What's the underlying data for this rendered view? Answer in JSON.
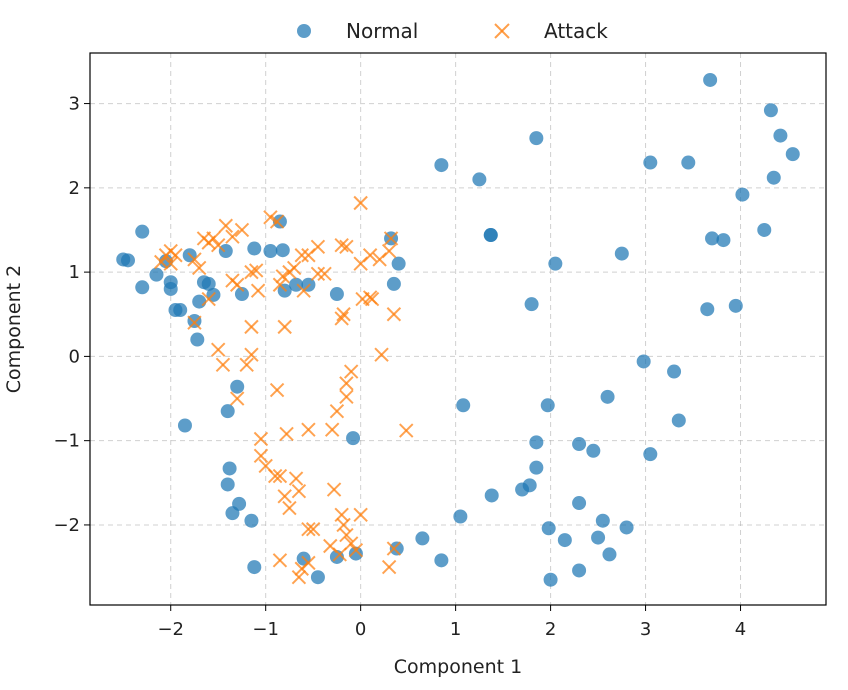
{
  "chart_data": {
    "type": "scatter",
    "title": "",
    "xlabel": "Component 1",
    "ylabel": "Component 2",
    "xlim": [
      -2.85,
      4.9
    ],
    "ylim": [
      -2.95,
      3.6
    ],
    "xticks": [
      -2,
      -1,
      0,
      1,
      2,
      3,
      4
    ],
    "yticks": [
      -2,
      -1,
      0,
      1,
      2,
      3
    ],
    "xtick_labels": [
      "−2",
      "−1",
      "0",
      "1",
      "2",
      "3",
      "4"
    ],
    "ytick_labels": [
      "−2",
      "−1",
      "0",
      "1",
      "2",
      "3"
    ],
    "grid": true,
    "legend_position": "top-center, above plot",
    "series": [
      {
        "name": "Normal",
        "marker": "circle",
        "color": "#1f77b4",
        "points": [
          [
            -2.5,
            1.15
          ],
          [
            -2.45,
            1.14
          ],
          [
            -2.3,
            1.48
          ],
          [
            -2.3,
            0.82
          ],
          [
            -2.15,
            0.97
          ],
          [
            -2.05,
            1.13
          ],
          [
            -2.0,
            0.88
          ],
          [
            -2.0,
            0.8
          ],
          [
            -1.95,
            0.55
          ],
          [
            -1.9,
            0.55
          ],
          [
            -1.85,
            -0.82
          ],
          [
            -1.8,
            1.2
          ],
          [
            -1.75,
            0.42
          ],
          [
            -1.72,
            0.2
          ],
          [
            -1.7,
            0.65
          ],
          [
            -1.65,
            0.88
          ],
          [
            -1.6,
            0.86
          ],
          [
            -1.55,
            0.73
          ],
          [
            -1.42,
            1.25
          ],
          [
            -1.4,
            -0.65
          ],
          [
            -1.38,
            -1.33
          ],
          [
            -1.4,
            -1.52
          ],
          [
            -1.35,
            -1.86
          ],
          [
            -1.3,
            -0.36
          ],
          [
            -1.28,
            -1.75
          ],
          [
            -1.25,
            0.74
          ],
          [
            -1.15,
            -1.95
          ],
          [
            -1.12,
            1.28
          ],
          [
            -1.12,
            -2.5
          ],
          [
            -0.95,
            1.25
          ],
          [
            -0.85,
            1.6
          ],
          [
            -0.8,
            0.78
          ],
          [
            -0.82,
            1.26
          ],
          [
            -0.68,
            0.85
          ],
          [
            -0.55,
            0.85
          ],
          [
            -0.6,
            -2.4
          ],
          [
            -0.45,
            -2.62
          ],
          [
            -0.25,
            0.74
          ],
          [
            -0.25,
            -2.38
          ],
          [
            -0.08,
            -0.97
          ],
          [
            -0.05,
            -2.34
          ],
          [
            0.32,
            1.4
          ],
          [
            0.35,
            0.86
          ],
          [
            0.4,
            1.1
          ],
          [
            0.38,
            -2.28
          ],
          [
            0.65,
            -2.16
          ],
          [
            0.85,
            2.27
          ],
          [
            0.85,
            -2.42
          ],
          [
            1.05,
            -1.9
          ],
          [
            1.08,
            -0.58
          ],
          [
            1.25,
            2.1
          ],
          [
            1.37,
            1.44
          ],
          [
            1.37,
            1.44
          ],
          [
            1.38,
            -1.65
          ],
          [
            1.7,
            -1.58
          ],
          [
            1.78,
            -1.53
          ],
          [
            1.8,
            0.62
          ],
          [
            1.85,
            2.59
          ],
          [
            1.85,
            -1.02
          ],
          [
            1.85,
            -1.32
          ],
          [
            1.97,
            -0.58
          ],
          [
            1.98,
            -2.04
          ],
          [
            2.0,
            -2.65
          ],
          [
            2.05,
            1.1
          ],
          [
            2.15,
            -2.18
          ],
          [
            2.3,
            -1.04
          ],
          [
            2.3,
            -1.74
          ],
          [
            2.3,
            -2.54
          ],
          [
            2.45,
            -1.12
          ],
          [
            2.5,
            -2.15
          ],
          [
            2.55,
            -1.95
          ],
          [
            2.6,
            -0.48
          ],
          [
            2.62,
            -2.35
          ],
          [
            2.75,
            1.22
          ],
          [
            2.8,
            -2.03
          ],
          [
            2.98,
            -0.06
          ],
          [
            3.05,
            2.3
          ],
          [
            3.05,
            -1.16
          ],
          [
            3.3,
            -0.18
          ],
          [
            3.35,
            -0.76
          ],
          [
            3.45,
            2.3
          ],
          [
            3.65,
            0.56
          ],
          [
            3.68,
            3.28
          ],
          [
            3.7,
            1.4
          ],
          [
            3.82,
            1.38
          ],
          [
            3.95,
            0.6
          ],
          [
            4.02,
            1.92
          ],
          [
            4.25,
            1.5
          ],
          [
            4.32,
            2.92
          ],
          [
            4.35,
            2.12
          ],
          [
            4.42,
            2.62
          ],
          [
            4.55,
            2.4
          ]
        ]
      },
      {
        "name": "Attack",
        "marker": "x",
        "color": "#ff7f0e",
        "points": [
          [
            -2.05,
            1.2
          ],
          [
            -2.1,
            1.12
          ],
          [
            -2.0,
            1.1
          ],
          [
            -1.95,
            1.2
          ],
          [
            -2.0,
            1.25
          ],
          [
            -1.75,
            1.15
          ],
          [
            -1.7,
            1.05
          ],
          [
            -1.65,
            1.4
          ],
          [
            -1.6,
            1.35
          ],
          [
            -1.55,
            1.4
          ],
          [
            -1.5,
            1.32
          ],
          [
            -1.42,
            1.55
          ],
          [
            -1.35,
            1.42
          ],
          [
            -1.35,
            0.9
          ],
          [
            -1.3,
            0.85
          ],
          [
            -1.25,
            1.5
          ],
          [
            -1.6,
            0.68
          ],
          [
            -1.75,
            0.4
          ],
          [
            -1.5,
            0.08
          ],
          [
            -1.45,
            -0.1
          ],
          [
            -1.3,
            -0.5
          ],
          [
            -1.15,
            0.35
          ],
          [
            -1.15,
            1.0
          ],
          [
            -1.1,
            1.02
          ],
          [
            -1.08,
            0.78
          ],
          [
            -1.15,
            0.02
          ],
          [
            -1.05,
            -0.98
          ],
          [
            -1.05,
            -1.18
          ],
          [
            -0.95,
            1.65
          ],
          [
            -0.88,
            1.6
          ],
          [
            -0.85,
            0.85
          ],
          [
            -0.82,
            0.95
          ],
          [
            -0.8,
            0.35
          ],
          [
            -0.88,
            -0.4
          ],
          [
            -0.78,
            -0.92
          ],
          [
            -0.9,
            -1.42
          ],
          [
            -0.85,
            -1.42
          ],
          [
            -0.8,
            -1.66
          ],
          [
            -0.75,
            -1.8
          ],
          [
            -0.68,
            -1.45
          ],
          [
            -0.65,
            -1.6
          ],
          [
            -0.75,
            1.0
          ],
          [
            -0.7,
            1.05
          ],
          [
            -0.62,
            1.2
          ],
          [
            -0.55,
            1.2
          ],
          [
            -0.45,
            1.3
          ],
          [
            -0.45,
            0.98
          ],
          [
            -0.38,
            0.98
          ],
          [
            -0.55,
            -0.87
          ],
          [
            -0.55,
            -2.05
          ],
          [
            -0.5,
            -2.05
          ],
          [
            -0.85,
            -2.42
          ],
          [
            -0.65,
            -2.62
          ],
          [
            -0.62,
            -2.52
          ],
          [
            -0.55,
            -2.45
          ],
          [
            -0.32,
            -2.25
          ],
          [
            -0.28,
            -1.58
          ],
          [
            -0.25,
            -0.65
          ],
          [
            -0.2,
            0.45
          ],
          [
            -0.18,
            0.5
          ],
          [
            -0.2,
            1.32
          ],
          [
            -0.15,
            1.3
          ],
          [
            -0.1,
            -0.18
          ],
          [
            -0.15,
            -0.32
          ],
          [
            -0.15,
            -0.48
          ],
          [
            -0.2,
            -1.88
          ],
          [
            -0.18,
            -2.0
          ],
          [
            -0.15,
            -2.12
          ],
          [
            -0.05,
            -2.3
          ],
          [
            0.0,
            1.82
          ],
          [
            0.02,
            0.68
          ],
          [
            0.1,
            0.7
          ],
          [
            0.12,
            0.68
          ],
          [
            0.1,
            1.2
          ],
          [
            0.2,
            1.15
          ],
          [
            0.22,
            0.02
          ],
          [
            0.3,
            1.25
          ],
          [
            0.32,
            1.4
          ],
          [
            0.35,
            0.5
          ],
          [
            0.35,
            -2.28
          ],
          [
            0.48,
            -0.88
          ],
          [
            0.3,
            -2.5
          ],
          [
            0.0,
            -1.88
          ],
          [
            -0.1,
            -2.22
          ],
          [
            -0.3,
            -0.87
          ],
          [
            -0.22,
            -2.35
          ],
          [
            -1.2,
            -0.1
          ],
          [
            -1.0,
            -1.3
          ],
          [
            -0.6,
            0.78
          ],
          [
            0.0,
            1.1
          ]
        ]
      }
    ]
  }
}
